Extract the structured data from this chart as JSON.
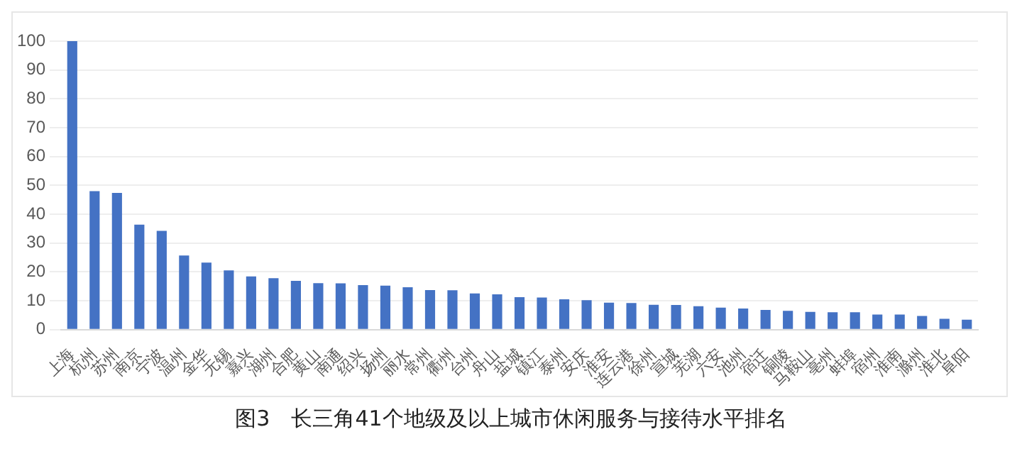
{
  "chart_data": {
    "type": "bar",
    "title": "图3　长三角41个地级及以上城市休闲服务与接待水平排名",
    "categories": [
      "上海",
      "杭州",
      "苏州",
      "南京",
      "宁波",
      "温州",
      "金华",
      "无锡",
      "嘉兴",
      "湖州",
      "合肥",
      "黄山",
      "南通",
      "绍兴",
      "扬州",
      "丽水",
      "常州",
      "衢州",
      "台州",
      "舟山",
      "盐城",
      "镇江",
      "泰州",
      "安庆",
      "淮安",
      "连云港",
      "徐州",
      "宣城",
      "芜湖",
      "六安",
      "池州",
      "宿迁",
      "铜陵",
      "马鞍山",
      "亳州",
      "蚌埠",
      "宿州",
      "淮南",
      "滁州",
      "淮北",
      "阜阳"
    ],
    "values": [
      100,
      48,
      47.4,
      36.4,
      34.2,
      25.7,
      23.2,
      20.5,
      18.4,
      17.8,
      16.9,
      16.1,
      16,
      15.4,
      15.2,
      14.7,
      13.7,
      13.6,
      12.5,
      12.2,
      11.2,
      11.1,
      10.5,
      10.2,
      9.3,
      9.2,
      8.6,
      8.5,
      8.1,
      7.6,
      7.3,
      6.8,
      6.5,
      6.1,
      6,
      6,
      5.2,
      5.2,
      4.7,
      3.7,
      3.4
    ],
    "color": "#4472c4",
    "ylim": [
      0,
      100
    ],
    "yticks": [
      0,
      10,
      20,
      30,
      40,
      50,
      60,
      70,
      80,
      90,
      100
    ],
    "grid": "y"
  }
}
